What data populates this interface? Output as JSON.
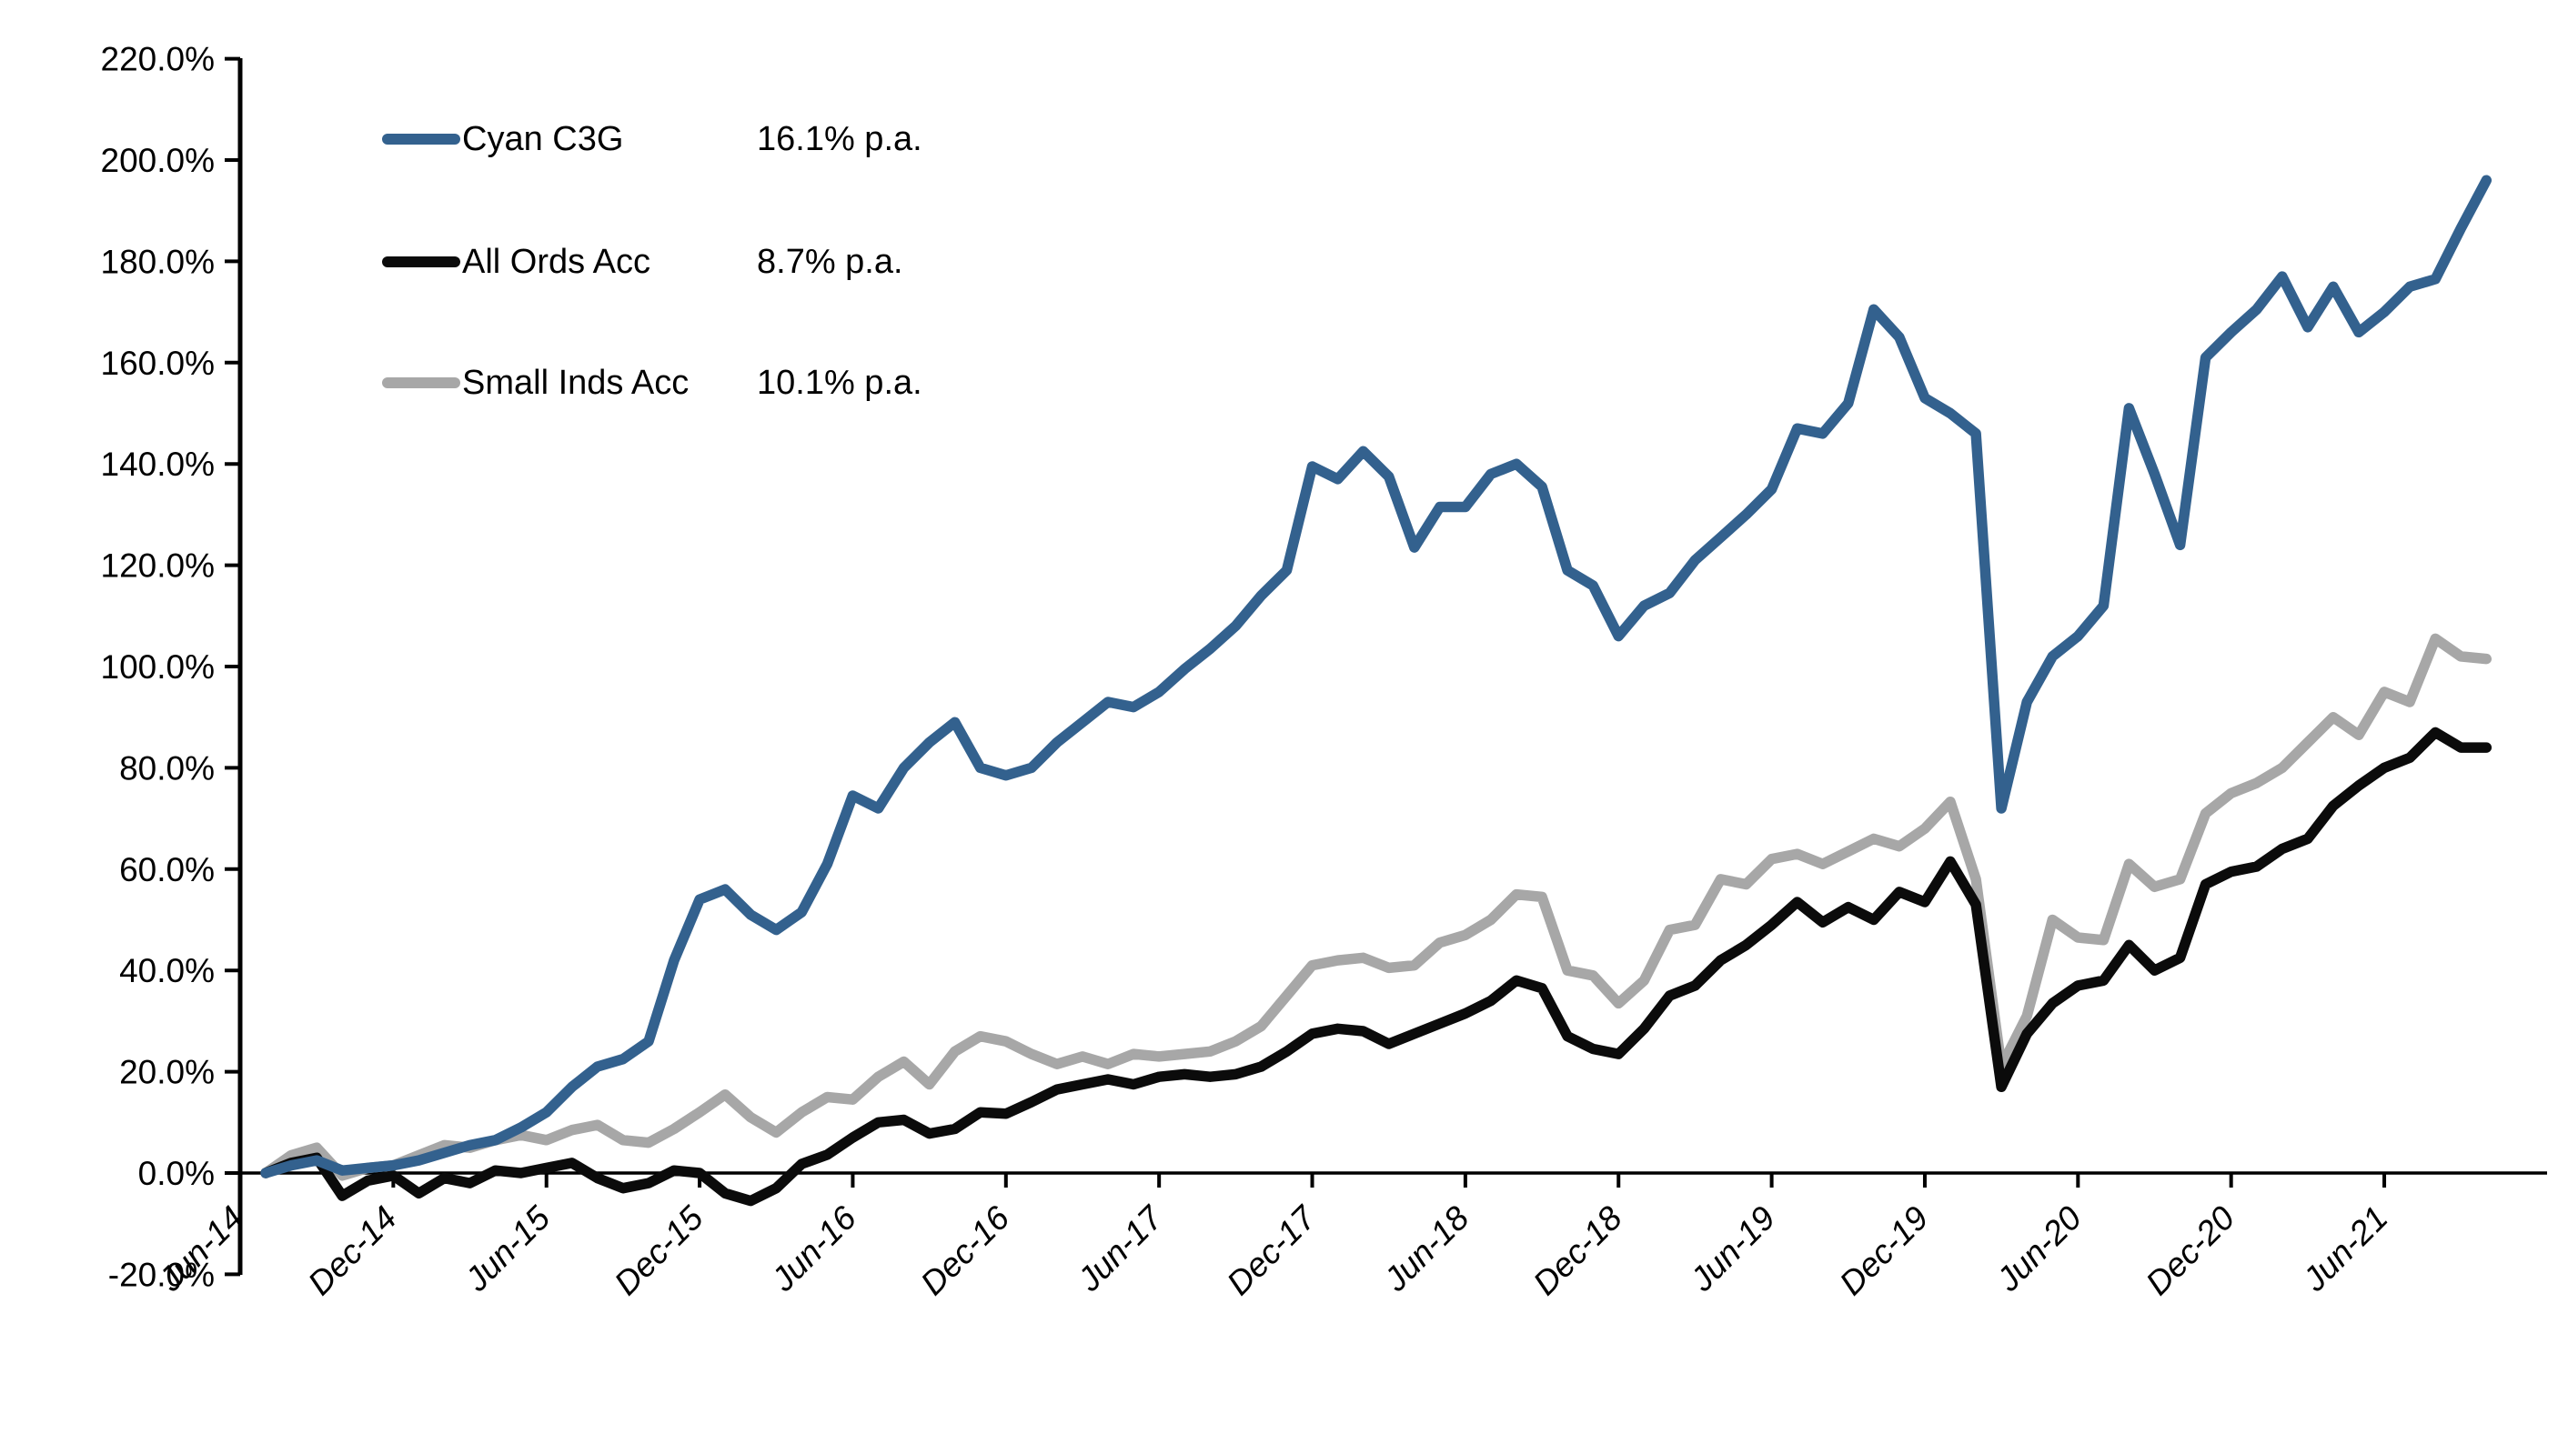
{
  "legend": {
    "items": [
      {
        "name": "Cyan C3G",
        "rate": "16.1% p.a.",
        "color": "#33618E"
      },
      {
        "name": "All Ords Acc",
        "rate": "8.7% p.a.",
        "color": "#0B0B0B"
      },
      {
        "name": "Small Inds Acc",
        "rate": "10.1% p.a.",
        "color": "#A7A7A7"
      }
    ]
  },
  "chart_data": {
    "type": "line",
    "title": "",
    "xlabel": "",
    "ylabel": "",
    "ylim": [
      -20,
      220
    ],
    "y_tick_step": 20,
    "y_tick_suffix": ".0%",
    "grid": false,
    "legend_position": "top-left-inside",
    "x_tick_labels": [
      "Jun-14",
      "Dec-14",
      "Jun-15",
      "Dec-15",
      "Jun-16",
      "Dec-16",
      "Jun-17",
      "Dec-17",
      "Jun-18",
      "Dec-18",
      "Jun-19",
      "Dec-19",
      "Jun-20",
      "Dec-20",
      "Jun-21"
    ],
    "x": [
      "Jul-14",
      "Aug-14",
      "Sep-14",
      "Oct-14",
      "Nov-14",
      "Dec-14",
      "Jan-15",
      "Feb-15",
      "Mar-15",
      "Apr-15",
      "May-15",
      "Jun-15",
      "Jul-15",
      "Aug-15",
      "Sep-15",
      "Oct-15",
      "Nov-15",
      "Dec-15",
      "Jan-16",
      "Feb-16",
      "Mar-16",
      "Apr-16",
      "May-16",
      "Jun-16",
      "Jul-16",
      "Aug-16",
      "Sep-16",
      "Oct-16",
      "Nov-16",
      "Dec-16",
      "Jan-17",
      "Feb-17",
      "Mar-17",
      "Apr-17",
      "May-17",
      "Jun-17",
      "Jul-17",
      "Aug-17",
      "Sep-17",
      "Oct-17",
      "Nov-17",
      "Dec-17",
      "Jan-18",
      "Feb-18",
      "Mar-18",
      "Apr-18",
      "May-18",
      "Jun-18",
      "Jul-18",
      "Aug-18",
      "Sep-18",
      "Oct-18",
      "Nov-18",
      "Dec-18",
      "Jan-19",
      "Feb-19",
      "Mar-19",
      "Apr-19",
      "May-19",
      "Jun-19",
      "Jul-19",
      "Aug-19",
      "Sep-19",
      "Oct-19",
      "Nov-19",
      "Dec-19",
      "Jan-20",
      "Feb-20",
      "Mar-20",
      "Apr-20",
      "May-20",
      "Jun-20",
      "Jul-20",
      "Aug-20",
      "Sep-20",
      "Oct-20",
      "Nov-20",
      "Dec-20",
      "Jan-21",
      "Feb-21",
      "Mar-21",
      "Apr-21",
      "May-21",
      "Jun-21",
      "Jul-21",
      "Aug-21",
      "Sep-21",
      "Oct-21"
    ],
    "series": [
      {
        "name": "Cyan C3G",
        "annual_return": "16.1% p.a.",
        "color": "#33618E",
        "values": [
          0,
          1.5,
          2.5,
          0.5,
          1,
          1.5,
          2.5,
          4,
          5.5,
          6.5,
          9,
          12,
          17,
          21,
          22.5,
          26,
          42,
          54,
          56,
          51,
          48,
          51.5,
          61,
          74.5,
          72,
          80,
          85,
          89,
          80,
          78.5,
          80,
          85,
          89,
          93,
          92,
          95,
          99.5,
          103.5,
          108,
          114,
          119,
          139.5,
          137,
          142.5,
          137.5,
          123.5,
          131.5,
          131.5,
          138,
          140,
          135.5,
          119,
          116,
          106,
          112,
          114.5,
          121,
          125.5,
          130,
          135,
          147,
          146,
          152,
          170.5,
          165,
          153,
          150,
          146,
          72,
          93,
          102,
          106,
          112,
          151,
          138,
          124,
          161,
          166,
          170.5,
          177,
          167,
          175,
          166,
          170,
          175,
          176.5,
          186.5,
          196
        ]
      },
      {
        "name": "All Ords Acc",
        "annual_return": "8.7% p.a.",
        "color": "#0B0B0B",
        "values": [
          0,
          2,
          3,
          -4.5,
          -1.5,
          -0.5,
          -4,
          -1,
          -2,
          0.5,
          0,
          1,
          2,
          -1,
          -3,
          -2,
          0.5,
          0,
          -4,
          -5.5,
          -3,
          1.8,
          3.6,
          7,
          10,
          10.5,
          7.8,
          8.7,
          12,
          11.7,
          14,
          16.5,
          17.5,
          18.5,
          17.5,
          19,
          19.5,
          19,
          19.5,
          21,
          24,
          27.5,
          28.5,
          28,
          25.5,
          27.5,
          29.5,
          31.5,
          34,
          38,
          36.5,
          27,
          24.5,
          23.5,
          28.5,
          35,
          37,
          42,
          45,
          49,
          53.5,
          49.5,
          52.5,
          50,
          55.5,
          53.5,
          61.5,
          53,
          17,
          27.5,
          33.5,
          37,
          38,
          45,
          40,
          42.5,
          57,
          59.5,
          60.5,
          64,
          66,
          72.5,
          76.5,
          80,
          82,
          87,
          84,
          84
        ]
      },
      {
        "name": "Small Inds Acc",
        "annual_return": "10.1% p.a.",
        "color": "#A7A7A7",
        "values": [
          0,
          3.5,
          5,
          -0.5,
          1,
          1.5,
          3.5,
          5.5,
          5,
          6.5,
          7.5,
          6.5,
          8.5,
          9.5,
          6.5,
          6,
          8.7,
          12,
          15.5,
          11,
          8,
          12,
          15,
          14.5,
          19,
          22,
          17.5,
          24,
          27,
          26,
          23.5,
          21.5,
          23,
          21.5,
          23.5,
          23,
          23.5,
          24,
          26,
          29,
          35,
          41,
          42,
          42.5,
          40.5,
          41,
          45.5,
          47,
          50,
          55,
          54.5,
          40,
          39,
          33.5,
          38,
          48,
          49,
          58,
          57,
          62,
          63,
          61,
          63.5,
          66,
          64.5,
          68,
          73.3,
          58,
          21,
          31,
          50,
          46.5,
          46,
          61,
          56.5,
          58,
          71,
          75,
          77,
          80,
          85,
          90,
          86.5,
          95,
          93,
          105.5,
          102,
          101.5
        ]
      }
    ]
  }
}
